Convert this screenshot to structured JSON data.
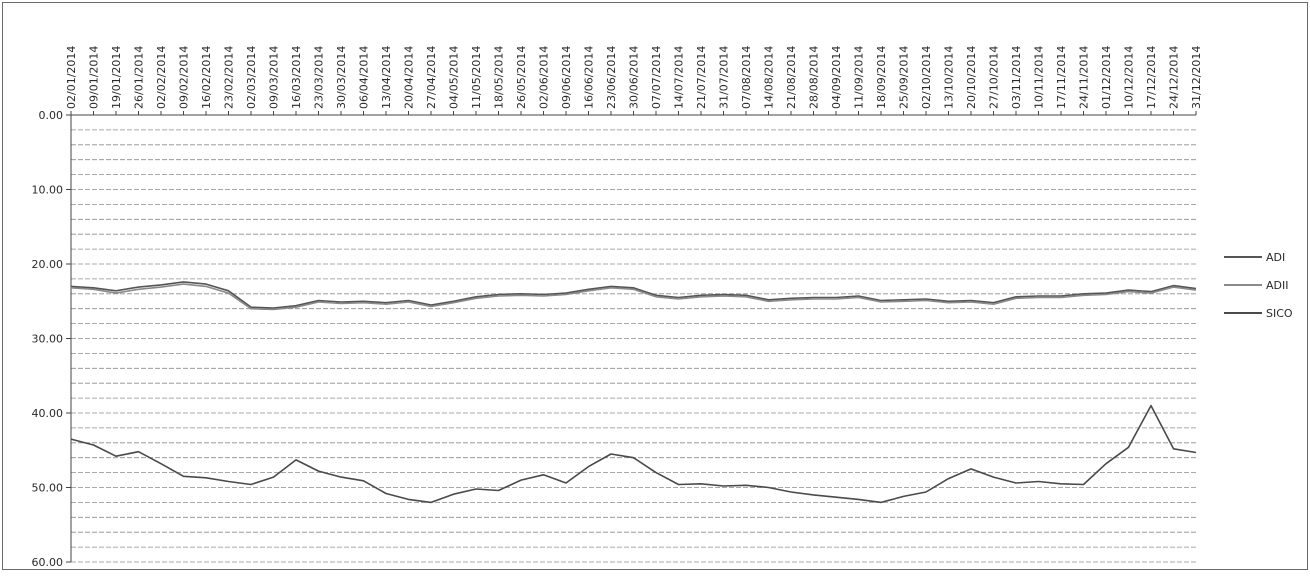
{
  "chart_data": {
    "type": "line",
    "title": "",
    "xlabel": "",
    "ylabel": "",
    "x_tick_labels": [
      "02/01/2014",
      "09/01/2014",
      "19/01/2014",
      "26/01/2014",
      "02/02/2014",
      "09/02/2014",
      "16/02/2014",
      "23/02/2014",
      "02/03/2014",
      "09/03/2014",
      "16/03/2014",
      "23/03/2014",
      "30/03/2014",
      "06/04/2014",
      "13/04/2014",
      "20/04/2014",
      "27/04/2014",
      "04/05/2014",
      "11/05/2014",
      "18/05/2014",
      "26/05/2014",
      "02/06/2014",
      "09/06/2014",
      "16/06/2014",
      "23/06/2014",
      "30/06/2014",
      "07/07/2014",
      "14/07/2014",
      "21/07/2014",
      "31/07/2014",
      "07/08/2014",
      "14/08/2014",
      "21/08/2014",
      "28/08/2014",
      "04/09/2014",
      "11/09/2014",
      "18/09/2014",
      "25/09/2014",
      "02/10/2014",
      "13/10/2014",
      "20/10/2014",
      "27/10/2014",
      "03/11/2014",
      "10/11/2014",
      "17/11/2014",
      "24/11/2014",
      "01/12/2014",
      "10/12/2014",
      "17/12/2014",
      "24/12/2014",
      "31/12/2014"
    ],
    "y_tick_labels": [
      "0.00",
      "10.00",
      "20.00",
      "30.00",
      "40.00",
      "50.00",
      "60.00"
    ],
    "y_ticks": [
      0,
      10,
      20,
      30,
      40,
      50,
      60
    ],
    "ylim": [
      0,
      60
    ],
    "y_inverted": true,
    "grid": true,
    "legend_position": "right",
    "series": [
      {
        "name": "ADI",
        "color": "#555555",
        "values": [
          23.0,
          23.2,
          23.6,
          23.1,
          22.8,
          22.4,
          22.7,
          23.6,
          25.8,
          25.9,
          25.6,
          24.9,
          25.1,
          25.0,
          25.2,
          24.9,
          25.5,
          25.0,
          24.4,
          24.1,
          24.0,
          24.1,
          23.9,
          23.4,
          23.0,
          23.2,
          24.2,
          24.5,
          24.2,
          24.1,
          24.2,
          24.8,
          24.6,
          24.5,
          24.5,
          24.3,
          24.9,
          24.8,
          24.7,
          25.0,
          24.9,
          25.2,
          24.4,
          24.3,
          24.3,
          24.0,
          23.9,
          23.5,
          23.7,
          22.9,
          23.3
        ]
      },
      {
        "name": "ADII",
        "color": "#8a8a8a",
        "values": [
          23.2,
          23.4,
          23.9,
          23.4,
          23.1,
          22.7,
          23.0,
          23.9,
          26.0,
          26.1,
          25.8,
          25.1,
          25.3,
          25.2,
          25.4,
          25.1,
          25.7,
          25.2,
          24.6,
          24.3,
          24.2,
          24.3,
          24.1,
          23.6,
          23.2,
          23.4,
          24.4,
          24.7,
          24.4,
          24.3,
          24.4,
          25.0,
          24.8,
          24.7,
          24.7,
          24.5,
          25.1,
          25.0,
          24.9,
          25.2,
          25.1,
          25.4,
          24.6,
          24.5,
          24.5,
          24.2,
          24.1,
          23.7,
          23.9,
          23.1,
          23.5
        ]
      },
      {
        "name": "SICO",
        "color": "#4a4a4a",
        "values": [
          43.5,
          44.3,
          45.8,
          45.2,
          46.8,
          48.5,
          48.7,
          49.2,
          49.6,
          48.6,
          46.3,
          47.8,
          48.6,
          49.1,
          50.8,
          51.6,
          52.0,
          50.9,
          50.2,
          50.4,
          49.0,
          48.3,
          49.4,
          47.2,
          45.5,
          46.0,
          48.0,
          49.6,
          49.5,
          49.8,
          49.7,
          50.0,
          50.6,
          51.0,
          51.3,
          51.6,
          52.0,
          51.2,
          50.6,
          48.8,
          47.5,
          48.6,
          49.4,
          49.2,
          49.5,
          49.6,
          46.8,
          44.6,
          39.0,
          44.8,
          45.3
        ]
      }
    ]
  }
}
